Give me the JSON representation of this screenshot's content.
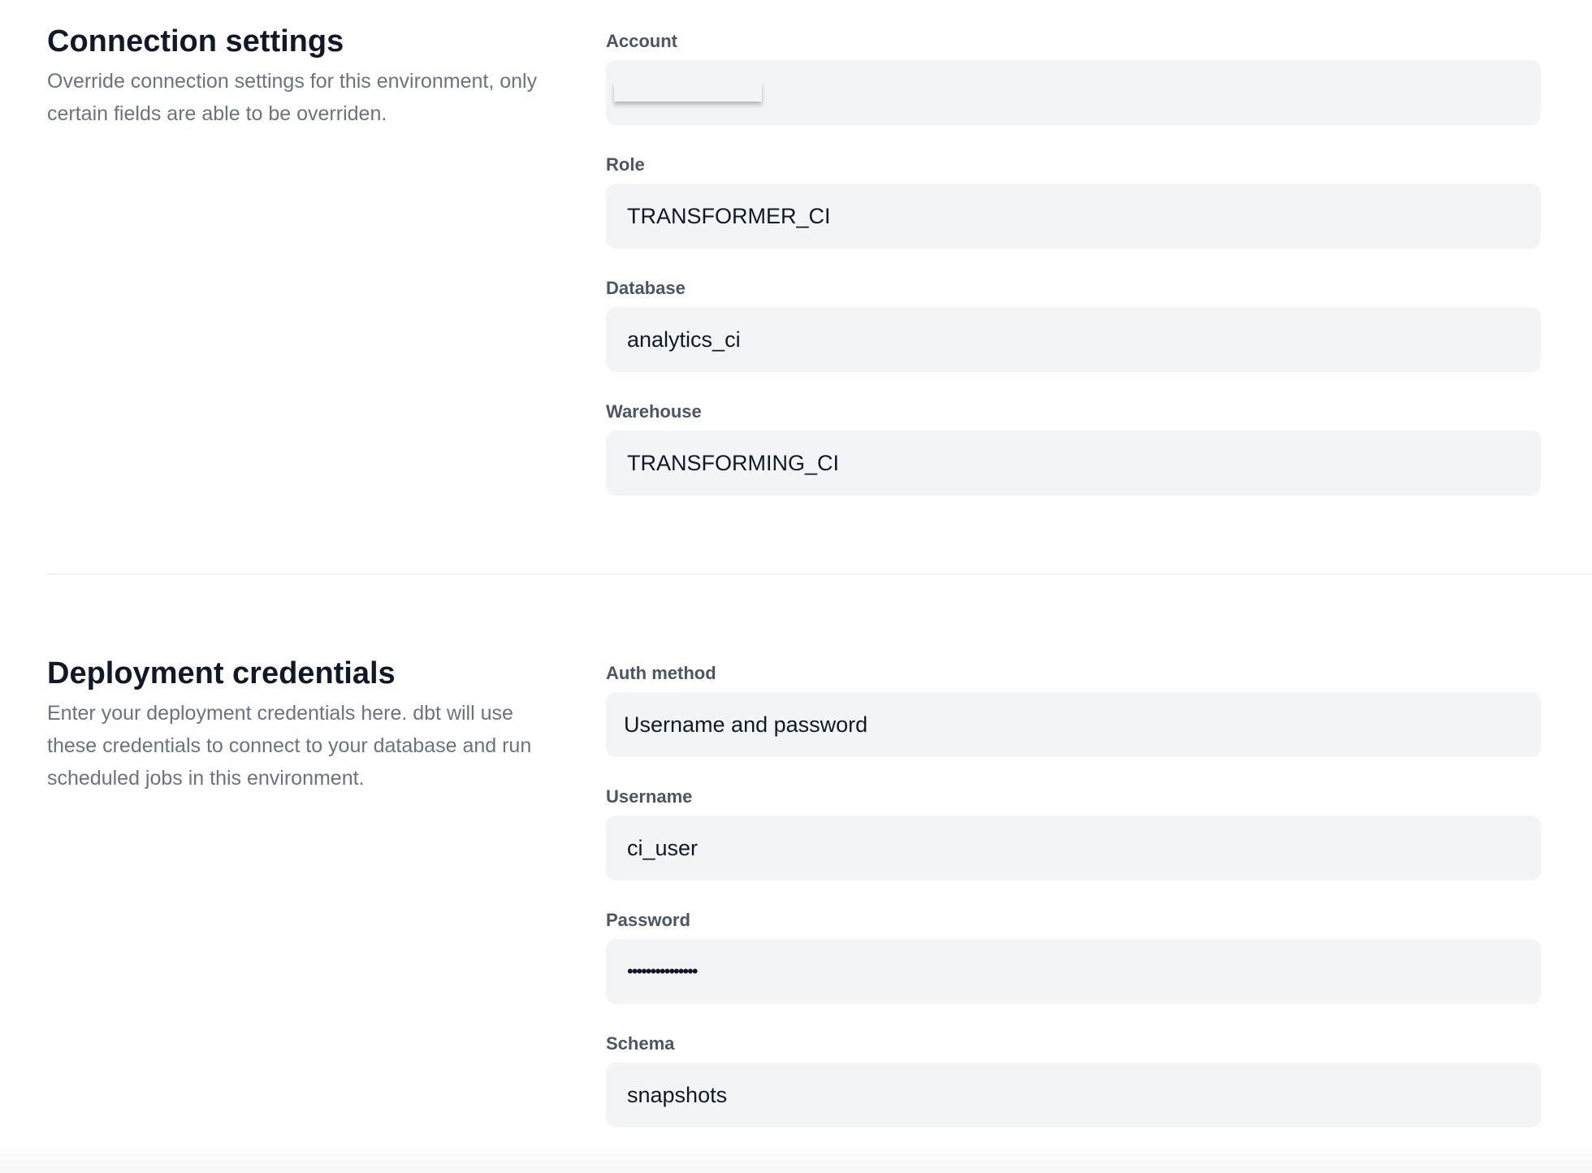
{
  "connection": {
    "title": "Connection settings",
    "description": "Override connection settings for this environment, only certain fields are able to be overriden.",
    "fields": [
      {
        "label": "Account",
        "value": ""
      },
      {
        "label": "Role",
        "value": "TRANSFORMER_CI"
      },
      {
        "label": "Database",
        "value": "analytics_ci"
      },
      {
        "label": "Warehouse",
        "value": "TRANSFORMING_CI"
      }
    ]
  },
  "credentials": {
    "title": "Deployment credentials",
    "description": "Enter your deployment credentials here. dbt will use these credentials to connect to your database and run scheduled jobs in this environment.",
    "fields": [
      {
        "label": "Auth method",
        "value": "Username and password"
      },
      {
        "label": "Username",
        "value": "ci_user"
      },
      {
        "label": "Password",
        "value": "•••••••••••••••"
      },
      {
        "label": "Schema",
        "value": "snapshots"
      }
    ]
  }
}
